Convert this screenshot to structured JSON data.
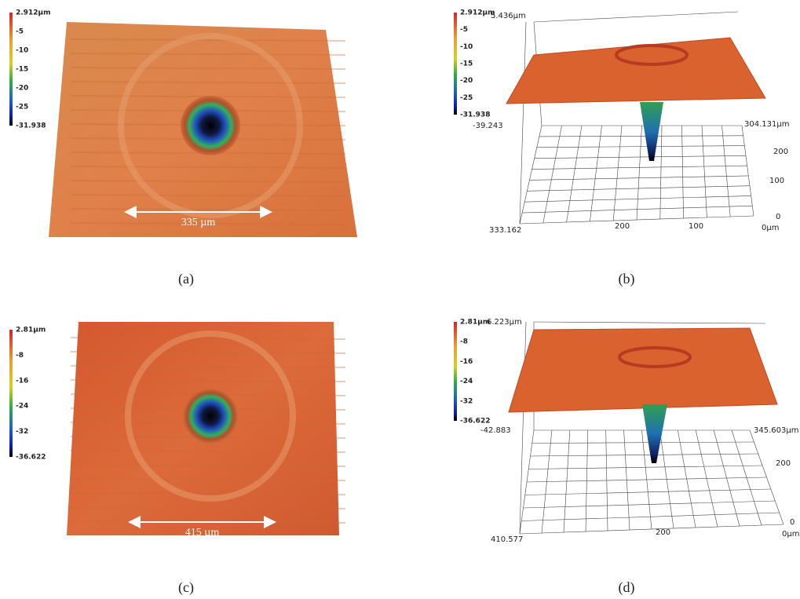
{
  "panels": [
    {
      "caption": "(a)",
      "colorbar": [
        "2.912µm",
        "-5",
        "-10",
        "-15",
        "-20",
        "-25",
        "-31.938"
      ],
      "scale_label": "335 µm"
    },
    {
      "caption": "(b)",
      "colorbar": [
        "2.912µm",
        "-5",
        "-10",
        "-15",
        "-20",
        "-25",
        "-31.938"
      ],
      "z_top": "5.436µm",
      "z_bottom": "-39.243",
      "y_end": "304.131µm",
      "y_ticks": [
        "200",
        "100",
        "0"
      ],
      "x_start": "333.162",
      "x_ticks": [
        "200",
        "100",
        "0µm"
      ]
    },
    {
      "caption": "(c)",
      "colorbar": [
        "2.81µm",
        "-8",
        "-16",
        "-24",
        "-32",
        "-36.622"
      ],
      "scale_label": "415 µm"
    },
    {
      "caption": "(d)",
      "colorbar": [
        "2.81µm",
        "-8",
        "-16",
        "-24",
        "-32",
        "-36.622"
      ],
      "z_top": "6.223µm",
      "z_bottom": "-42.883",
      "y_end": "345.603µm",
      "y_ticks": [
        "200",
        "0"
      ],
      "x_start": "410.577",
      "x_ticks": [
        "200",
        "0µm"
      ]
    }
  ]
}
